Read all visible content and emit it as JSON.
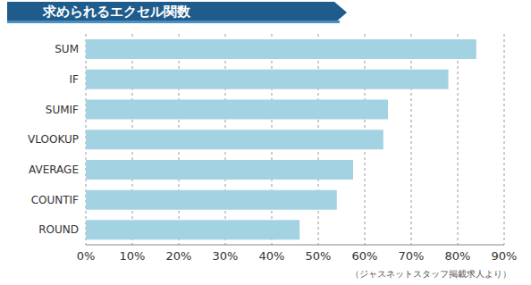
{
  "chart_data": {
    "type": "bar",
    "title": "求められるエクセル関数",
    "categories": [
      "SUM",
      "IF",
      "SUMIF",
      "VLOOKUP",
      "AVERAGE",
      "COUNTIF",
      "ROUND"
    ],
    "values": [
      84,
      78,
      65,
      64,
      57.5,
      54,
      46
    ],
    "color": "#a3d3e3",
    "orientation": "horizontal",
    "xlim": [
      0,
      90
    ],
    "xticks": [
      {
        "value": 0,
        "label": "0%"
      },
      {
        "value": 10,
        "label": "10%"
      },
      {
        "value": 20,
        "label": "20%"
      },
      {
        "value": 30,
        "label": "30%"
      },
      {
        "value": 40,
        "label": "40%"
      },
      {
        "value": 50,
        "label": "50%"
      },
      {
        "value": 60,
        "label": "60%"
      },
      {
        "value": 70,
        "label": "70%"
      },
      {
        "value": 80,
        "label": "80%"
      },
      {
        "value": 90,
        "label": "90%"
      }
    ],
    "grid": true,
    "annotations": [
      "（ジャスネットスタッフ掲載求人より）"
    ]
  }
}
